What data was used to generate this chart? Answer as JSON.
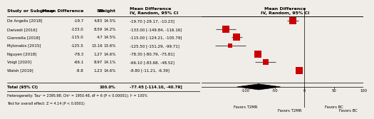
{
  "studies": [
    {
      "name": "De Angelis [2018]",
      "md": -19.7,
      "se": 4.83,
      "weight": 14.5,
      "ci_lo": -29.17,
      "ci_hi": -10.23
    },
    {
      "name": "Dwivedi [2016]",
      "md": -133.0,
      "se": 8.59,
      "weight": 14.2,
      "ci_lo": -149.84,
      "ci_hi": -116.16
    },
    {
      "name": "Giannella [2018]",
      "md": -115.0,
      "se": 4.7,
      "weight": 14.5,
      "ci_lo": -124.21,
      "ci_hi": -105.79
    },
    {
      "name": "Mylonakis [2015]",
      "md": -125.5,
      "se": 13.16,
      "weight": 13.6,
      "ci_lo": -151.29,
      "ci_hi": -99.71
    },
    {
      "name": "Nguyen [2018]",
      "md": -78.3,
      "se": 1.27,
      "weight": 14.6,
      "ci_lo": -80.79,
      "ci_hi": -75.81
    },
    {
      "name": "Voigt [2020]",
      "md": -66.1,
      "se": 8.97,
      "weight": 14.1,
      "ci_lo": -83.68,
      "ci_hi": -48.52
    },
    {
      "name": "Walsh [2019]",
      "md": -8.8,
      "se": 1.23,
      "weight": 14.6,
      "ci_lo": -11.21,
      "ci_hi": -6.39
    }
  ],
  "pooled": {
    "md": -77.45,
    "ci_lo": -114.1,
    "ci_hi": -40.79
  },
  "col_headers": [
    "Study or Subgroup",
    "Mean Difference",
    "SE",
    "Weight",
    "Mean Difference\nIV, Random, 95% CI",
    "Mean Difference\nIV, Random, 95% CI"
  ],
  "footer1": "Heterogeneity: Tau² = 2395.98; Chi² = 1950.48, df = 6 (P < 0.00001); I² = 100%",
  "footer2": "Test for overall effect: Z = 4.14 (P < 0.0001)",
  "total_label": "Total (95% CI)",
  "total_weight": "100.0%",
  "axis_ticks": [
    -100,
    -50,
    0,
    50,
    100
  ],
  "axis_label_left": "Favors T2MR",
  "axis_label_right": "Favors BC",
  "plot_xlim": [
    -175,
    100
  ],
  "square_color": "#cc0000",
  "line_color": "#555555",
  "diamond_color": "#000000",
  "header_col_color": "#000000",
  "bg_color": "#f0ede8",
  "max_weight": 14.6,
  "min_weight": 13.6
}
